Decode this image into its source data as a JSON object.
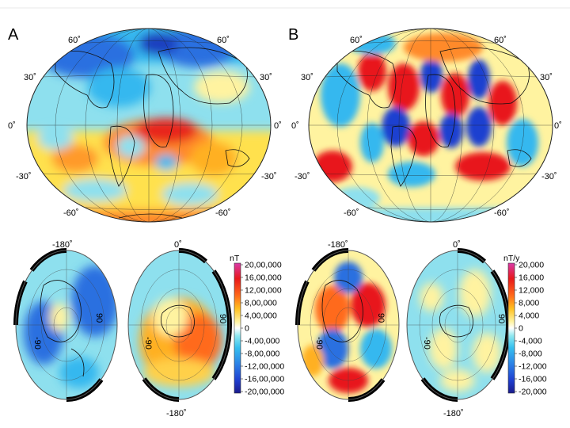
{
  "panels": {
    "a": {
      "letter": "A"
    },
    "b": {
      "letter": "B"
    }
  },
  "map_labels": {
    "lat": [
      "60˚",
      "30˚",
      "0˚",
      "-30˚",
      "-60˚"
    ],
    "lat_right": [
      "60˚",
      "30˚",
      "0˚",
      "-30˚",
      "-60˚"
    ]
  },
  "polar_labels": {
    "north": {
      "top": "-180˚",
      "left": "-90",
      "right": "90"
    },
    "south": {
      "top": "0˚",
      "bottom": "-180˚",
      "left": "-90",
      "right": "90"
    }
  },
  "colorbar_a": {
    "unit": "nT",
    "ticks": [
      "20,00,000",
      "16,00,000",
      "12,00,000",
      "8,00,000",
      "4,00,000",
      "0",
      "-4,00,000",
      "-8,00,000",
      "-12,00,000",
      "-16,00,000",
      "-20,00,000"
    ]
  },
  "colorbar_b": {
    "unit": "nT/y",
    "ticks": [
      "20,000",
      "16,000",
      "12,000",
      "8,000",
      "4,000",
      "0",
      "-4,000",
      "-8,000",
      "-12,000",
      "-16,000",
      "-20,000"
    ]
  },
  "colors": {
    "scale": [
      "#1a1a8c",
      "#1f3fd0",
      "#2b7fe6",
      "#36c0ef",
      "#6ee4ee",
      "#fff8c8",
      "#ffe14d",
      "#ffb020",
      "#ff6a1a",
      "#e8181a",
      "#d93aa8"
    ]
  }
}
